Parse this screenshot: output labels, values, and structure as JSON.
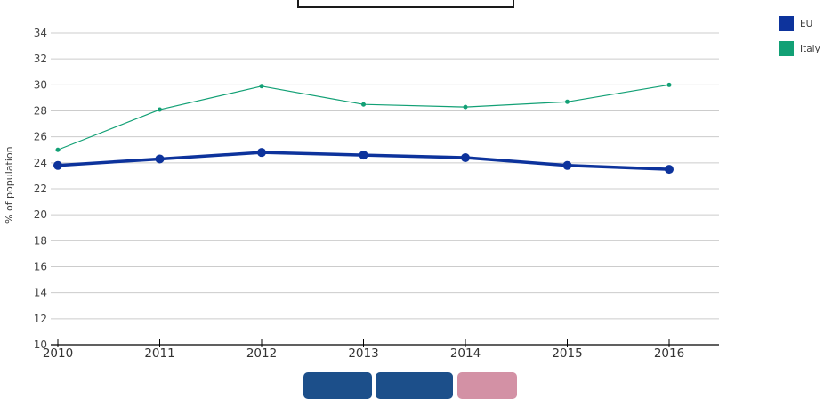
{
  "title_box": {
    "text": ""
  },
  "legend": {
    "position": "top-right",
    "items": [
      {
        "label": "EU",
        "color": "#0d339c"
      },
      {
        "label": "Italy",
        "color": "#12a075"
      }
    ]
  },
  "chart_data": {
    "type": "line",
    "x": [
      2010,
      2011,
      2012,
      2013,
      2014,
      2015,
      2016
    ],
    "series": [
      {
        "name": "EU",
        "values": [
          23.8,
          24.3,
          24.8,
          24.6,
          24.4,
          23.8,
          23.5
        ],
        "color": "#0d339c",
        "line_width": 3.5,
        "marker_radius": 5
      },
      {
        "name": "Italy",
        "values": [
          25.0,
          28.1,
          29.9,
          28.5,
          28.3,
          28.7,
          30.0
        ],
        "color": "#12a075",
        "line_width": 1.2,
        "marker_radius": 2.5
      }
    ],
    "title": "",
    "xlabel": "",
    "ylabel": "% of population",
    "ylim": [
      10,
      34
    ],
    "yticks": [
      10,
      12,
      14,
      16,
      18,
      20,
      22,
      24,
      26,
      28,
      30,
      32,
      34
    ],
    "grid": "horizontal-only",
    "gridline_color": "#cccccc",
    "axis_color": "#000000",
    "tick_label_color": "#454545",
    "x_tick_label_font_px": 13.5,
    "y_tick_label_font_px": 12
  },
  "footer_buttons": [
    {
      "name": "footer-button-1",
      "color": "#1c4f8a"
    },
    {
      "name": "footer-button-2",
      "color": "#1c4f8a"
    },
    {
      "name": "footer-button-3",
      "color": "#d391a5"
    }
  ]
}
